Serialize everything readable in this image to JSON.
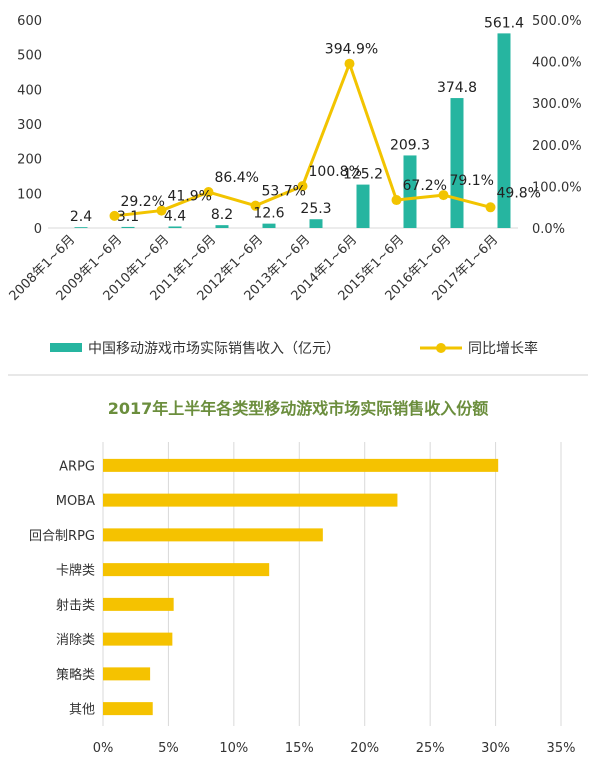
{
  "chart_data": [
    {
      "type": "bar+line",
      "categories": [
        "2008年1~6月",
        "2009年1~6月",
        "2010年1~6月",
        "2011年1~6月",
        "2012年1~6月",
        "2013年1~6月",
        "2014年1~6月",
        "2015年1~6月",
        "2016年1~6月",
        "2017年1~6月"
      ],
      "series": [
        {
          "name": "中国移动游戏市场实际销售收入（亿元）",
          "type": "bar",
          "axis": "left",
          "values": [
            2.4,
            3.1,
            4.4,
            8.2,
            12.6,
            25.3,
            125.2,
            209.3,
            374.8,
            561.4
          ],
          "labels": [
            "2.4",
            "3.1",
            "4.4",
            "8.2",
            "12.6",
            "25.3",
            "125.2",
            "209.3",
            "374.8",
            "561.4"
          ],
          "color": "#26b5a0"
        },
        {
          "name": "同比增长率",
          "type": "line",
          "axis": "right",
          "values": [
            null,
            29.2,
            41.9,
            86.4,
            53.7,
            100.8,
            394.9,
            67.2,
            79.1,
            49.8
          ],
          "labels": [
            "",
            "29.2%",
            "41.9%",
            "86.4%",
            "53.7%",
            "100.8%",
            "394.9%",
            "67.2%",
            "79.1%",
            "49.8%"
          ],
          "color": "#f2c400"
        }
      ],
      "ylim_left": [
        0,
        600
      ],
      "yticks_left": [
        "0",
        "100",
        "200",
        "300",
        "400",
        "500",
        "600"
      ],
      "ylim_right": [
        0,
        500
      ],
      "yticks_right": [
        "0.0%",
        "100.0%",
        "200.0%",
        "300.0%",
        "400.0%",
        "500.0%"
      ],
      "legend_position": "bottom"
    },
    {
      "type": "bar",
      "orientation": "horizontal",
      "title": "2017年上半年各类型移动游戏市场实际销售收入份额",
      "categories": [
        "ARPG",
        "MOBA",
        "回合制RPG",
        "卡牌类",
        "射击类",
        "消除类",
        "策略类",
        "其他"
      ],
      "values": [
        30.2,
        22.5,
        16.8,
        12.7,
        5.4,
        5.3,
        3.6,
        3.8
      ],
      "xlim": [
        0,
        35
      ],
      "xticks": [
        "0%",
        "5%",
        "10%",
        "15%",
        "20%",
        "25%",
        "30%",
        "35%"
      ],
      "color": "#f5c200",
      "grid": true
    }
  ]
}
